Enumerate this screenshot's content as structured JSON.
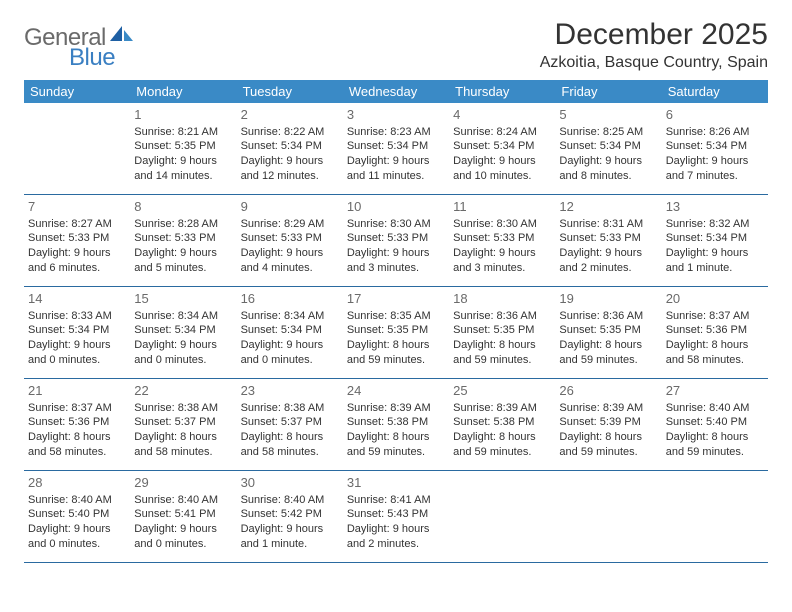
{
  "logo": {
    "text1": "General",
    "text2": "Blue"
  },
  "title": "December 2025",
  "location": "Azkoitia, Basque Country, Spain",
  "colors": {
    "header_bg": "#3a8ac6",
    "header_text": "#ffffff",
    "row_border": "#2a6aa0",
    "logo_gray": "#6a6a6a",
    "logo_blue": "#3a7fc2",
    "body_text": "#333333"
  },
  "weekdays": [
    "Sunday",
    "Monday",
    "Tuesday",
    "Wednesday",
    "Thursday",
    "Friday",
    "Saturday"
  ],
  "start_offset": 1,
  "days": [
    {
      "n": 1,
      "sunrise": "8:21 AM",
      "sunset": "5:35 PM",
      "daylight": "9 hours and 14 minutes."
    },
    {
      "n": 2,
      "sunrise": "8:22 AM",
      "sunset": "5:34 PM",
      "daylight": "9 hours and 12 minutes."
    },
    {
      "n": 3,
      "sunrise": "8:23 AM",
      "sunset": "5:34 PM",
      "daylight": "9 hours and 11 minutes."
    },
    {
      "n": 4,
      "sunrise": "8:24 AM",
      "sunset": "5:34 PM",
      "daylight": "9 hours and 10 minutes."
    },
    {
      "n": 5,
      "sunrise": "8:25 AM",
      "sunset": "5:34 PM",
      "daylight": "9 hours and 8 minutes."
    },
    {
      "n": 6,
      "sunrise": "8:26 AM",
      "sunset": "5:34 PM",
      "daylight": "9 hours and 7 minutes."
    },
    {
      "n": 7,
      "sunrise": "8:27 AM",
      "sunset": "5:33 PM",
      "daylight": "9 hours and 6 minutes."
    },
    {
      "n": 8,
      "sunrise": "8:28 AM",
      "sunset": "5:33 PM",
      "daylight": "9 hours and 5 minutes."
    },
    {
      "n": 9,
      "sunrise": "8:29 AM",
      "sunset": "5:33 PM",
      "daylight": "9 hours and 4 minutes."
    },
    {
      "n": 10,
      "sunrise": "8:30 AM",
      "sunset": "5:33 PM",
      "daylight": "9 hours and 3 minutes."
    },
    {
      "n": 11,
      "sunrise": "8:30 AM",
      "sunset": "5:33 PM",
      "daylight": "9 hours and 3 minutes."
    },
    {
      "n": 12,
      "sunrise": "8:31 AM",
      "sunset": "5:33 PM",
      "daylight": "9 hours and 2 minutes."
    },
    {
      "n": 13,
      "sunrise": "8:32 AM",
      "sunset": "5:34 PM",
      "daylight": "9 hours and 1 minute."
    },
    {
      "n": 14,
      "sunrise": "8:33 AM",
      "sunset": "5:34 PM",
      "daylight": "9 hours and 0 minutes."
    },
    {
      "n": 15,
      "sunrise": "8:34 AM",
      "sunset": "5:34 PM",
      "daylight": "9 hours and 0 minutes."
    },
    {
      "n": 16,
      "sunrise": "8:34 AM",
      "sunset": "5:34 PM",
      "daylight": "9 hours and 0 minutes."
    },
    {
      "n": 17,
      "sunrise": "8:35 AM",
      "sunset": "5:35 PM",
      "daylight": "8 hours and 59 minutes."
    },
    {
      "n": 18,
      "sunrise": "8:36 AM",
      "sunset": "5:35 PM",
      "daylight": "8 hours and 59 minutes."
    },
    {
      "n": 19,
      "sunrise": "8:36 AM",
      "sunset": "5:35 PM",
      "daylight": "8 hours and 59 minutes."
    },
    {
      "n": 20,
      "sunrise": "8:37 AM",
      "sunset": "5:36 PM",
      "daylight": "8 hours and 58 minutes."
    },
    {
      "n": 21,
      "sunrise": "8:37 AM",
      "sunset": "5:36 PM",
      "daylight": "8 hours and 58 minutes."
    },
    {
      "n": 22,
      "sunrise": "8:38 AM",
      "sunset": "5:37 PM",
      "daylight": "8 hours and 58 minutes."
    },
    {
      "n": 23,
      "sunrise": "8:38 AM",
      "sunset": "5:37 PM",
      "daylight": "8 hours and 58 minutes."
    },
    {
      "n": 24,
      "sunrise": "8:39 AM",
      "sunset": "5:38 PM",
      "daylight": "8 hours and 59 minutes."
    },
    {
      "n": 25,
      "sunrise": "8:39 AM",
      "sunset": "5:38 PM",
      "daylight": "8 hours and 59 minutes."
    },
    {
      "n": 26,
      "sunrise": "8:39 AM",
      "sunset": "5:39 PM",
      "daylight": "8 hours and 59 minutes."
    },
    {
      "n": 27,
      "sunrise": "8:40 AM",
      "sunset": "5:40 PM",
      "daylight": "8 hours and 59 minutes."
    },
    {
      "n": 28,
      "sunrise": "8:40 AM",
      "sunset": "5:40 PM",
      "daylight": "9 hours and 0 minutes."
    },
    {
      "n": 29,
      "sunrise": "8:40 AM",
      "sunset": "5:41 PM",
      "daylight": "9 hours and 0 minutes."
    },
    {
      "n": 30,
      "sunrise": "8:40 AM",
      "sunset": "5:42 PM",
      "daylight": "9 hours and 1 minute."
    },
    {
      "n": 31,
      "sunrise": "8:41 AM",
      "sunset": "5:43 PM",
      "daylight": "9 hours and 2 minutes."
    }
  ],
  "labels": {
    "sunrise": "Sunrise:",
    "sunset": "Sunset:",
    "daylight": "Daylight:"
  }
}
